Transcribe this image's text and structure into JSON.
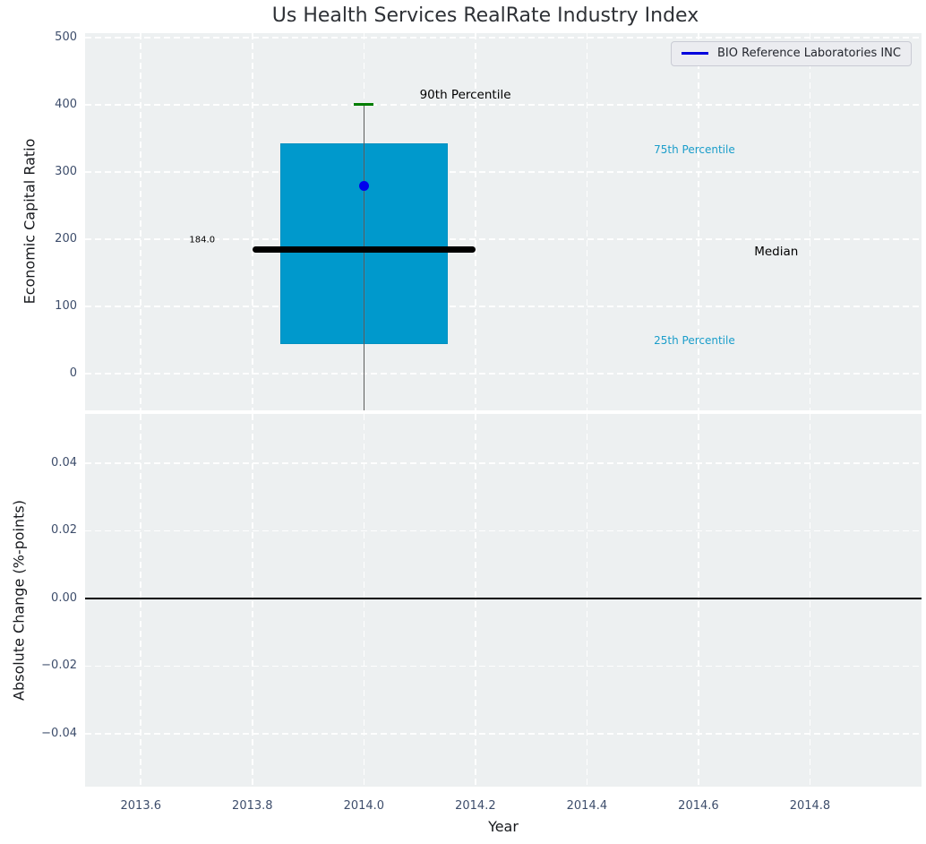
{
  "figure": {
    "background": "#ffffff",
    "axes_background": "#edf0f1",
    "grid_color": "#ffffff",
    "tick_color": "#3d4d6b"
  },
  "chart_data": {
    "type": "boxplot",
    "title": "Us Health Services RealRate Industry Index",
    "xlabel": "Year",
    "grid": "on, white dashed",
    "x": {
      "xlim": [
        2013.5,
        2015.0
      ],
      "ticks": [
        {
          "v": 2013.6,
          "label": "2013.6"
        },
        {
          "v": 2013.8,
          "label": "2013.8"
        },
        {
          "v": 2014.0,
          "label": "2014.0"
        },
        {
          "v": 2014.2,
          "label": "2014.2"
        },
        {
          "v": 2014.4,
          "label": "2014.4"
        },
        {
          "v": 2014.6,
          "label": "2014.6"
        },
        {
          "v": 2014.8,
          "label": "2014.8"
        }
      ]
    },
    "top_panel": {
      "ylabel": "Economic Capital Ratio",
      "ylim": [
        -55,
        507
      ],
      "ticks": [
        {
          "v": 0,
          "label": "0"
        },
        {
          "v": 100,
          "label": "100"
        },
        {
          "v": 200,
          "label": "200"
        },
        {
          "v": 300,
          "label": "300"
        },
        {
          "v": 400,
          "label": "400"
        },
        {
          "v": 500,
          "label": "500"
        }
      ],
      "box": {
        "x_center": 2014.0,
        "box_left": 2013.85,
        "box_right": 2014.15,
        "median_left": 2013.8,
        "median_right": 2014.2,
        "p25": 44,
        "median": 184,
        "p75": 343,
        "p90": 401,
        "whisker_low_clipped": true,
        "median_label": "184.0",
        "box_color": "#0099cc",
        "box_edge_color": "#0090c0",
        "median_color": "#000000",
        "cap_color": "#007d00",
        "whisker_color": "#5d5d5d"
      },
      "company_point": {
        "name": "BIO Reference Laboratories INC",
        "x": 2014.0,
        "y": 280,
        "color": "#0000ee"
      },
      "annotations": [
        {
          "text": "90th Percentile",
          "x": 2014.1,
          "y": 415,
          "color": "#000000",
          "size": 13.5,
          "align": "left"
        },
        {
          "text": "75th Percentile",
          "x": 2014.52,
          "y": 333,
          "color": "#1a9dca",
          "size": 12,
          "align": "left"
        },
        {
          "text": "Median",
          "x": 2014.7,
          "y": 181,
          "color": "#000000",
          "size": 13.5,
          "align": "left"
        },
        {
          "text": "25th Percentile",
          "x": 2014.52,
          "y": 49,
          "color": "#1a9dca",
          "size": 12,
          "align": "left"
        },
        {
          "text": "184.0",
          "x": 2013.71,
          "y": 198,
          "color": "#000000",
          "size": 10,
          "align": "center"
        }
      ]
    },
    "bottom_panel": {
      "ylabel": "Absolute Change (%-points)",
      "ylim": [
        -0.0557,
        0.0546
      ],
      "ticks": [
        {
          "v": 0.04,
          "label": "0.04"
        },
        {
          "v": 0.02,
          "label": "0.02"
        },
        {
          "v": 0.0,
          "label": "0.00"
        },
        {
          "v": -0.02,
          "label": "−0.02"
        },
        {
          "v": -0.04,
          "label": "−0.04"
        }
      ],
      "zero_line_y": 0.0,
      "zero_line_color": "#000000",
      "series_visible": "none (flat zero reference line only)"
    },
    "legend": {
      "label": "BIO Reference Laboratories INC",
      "line_color": "#0000dd",
      "position": "upper right"
    }
  }
}
